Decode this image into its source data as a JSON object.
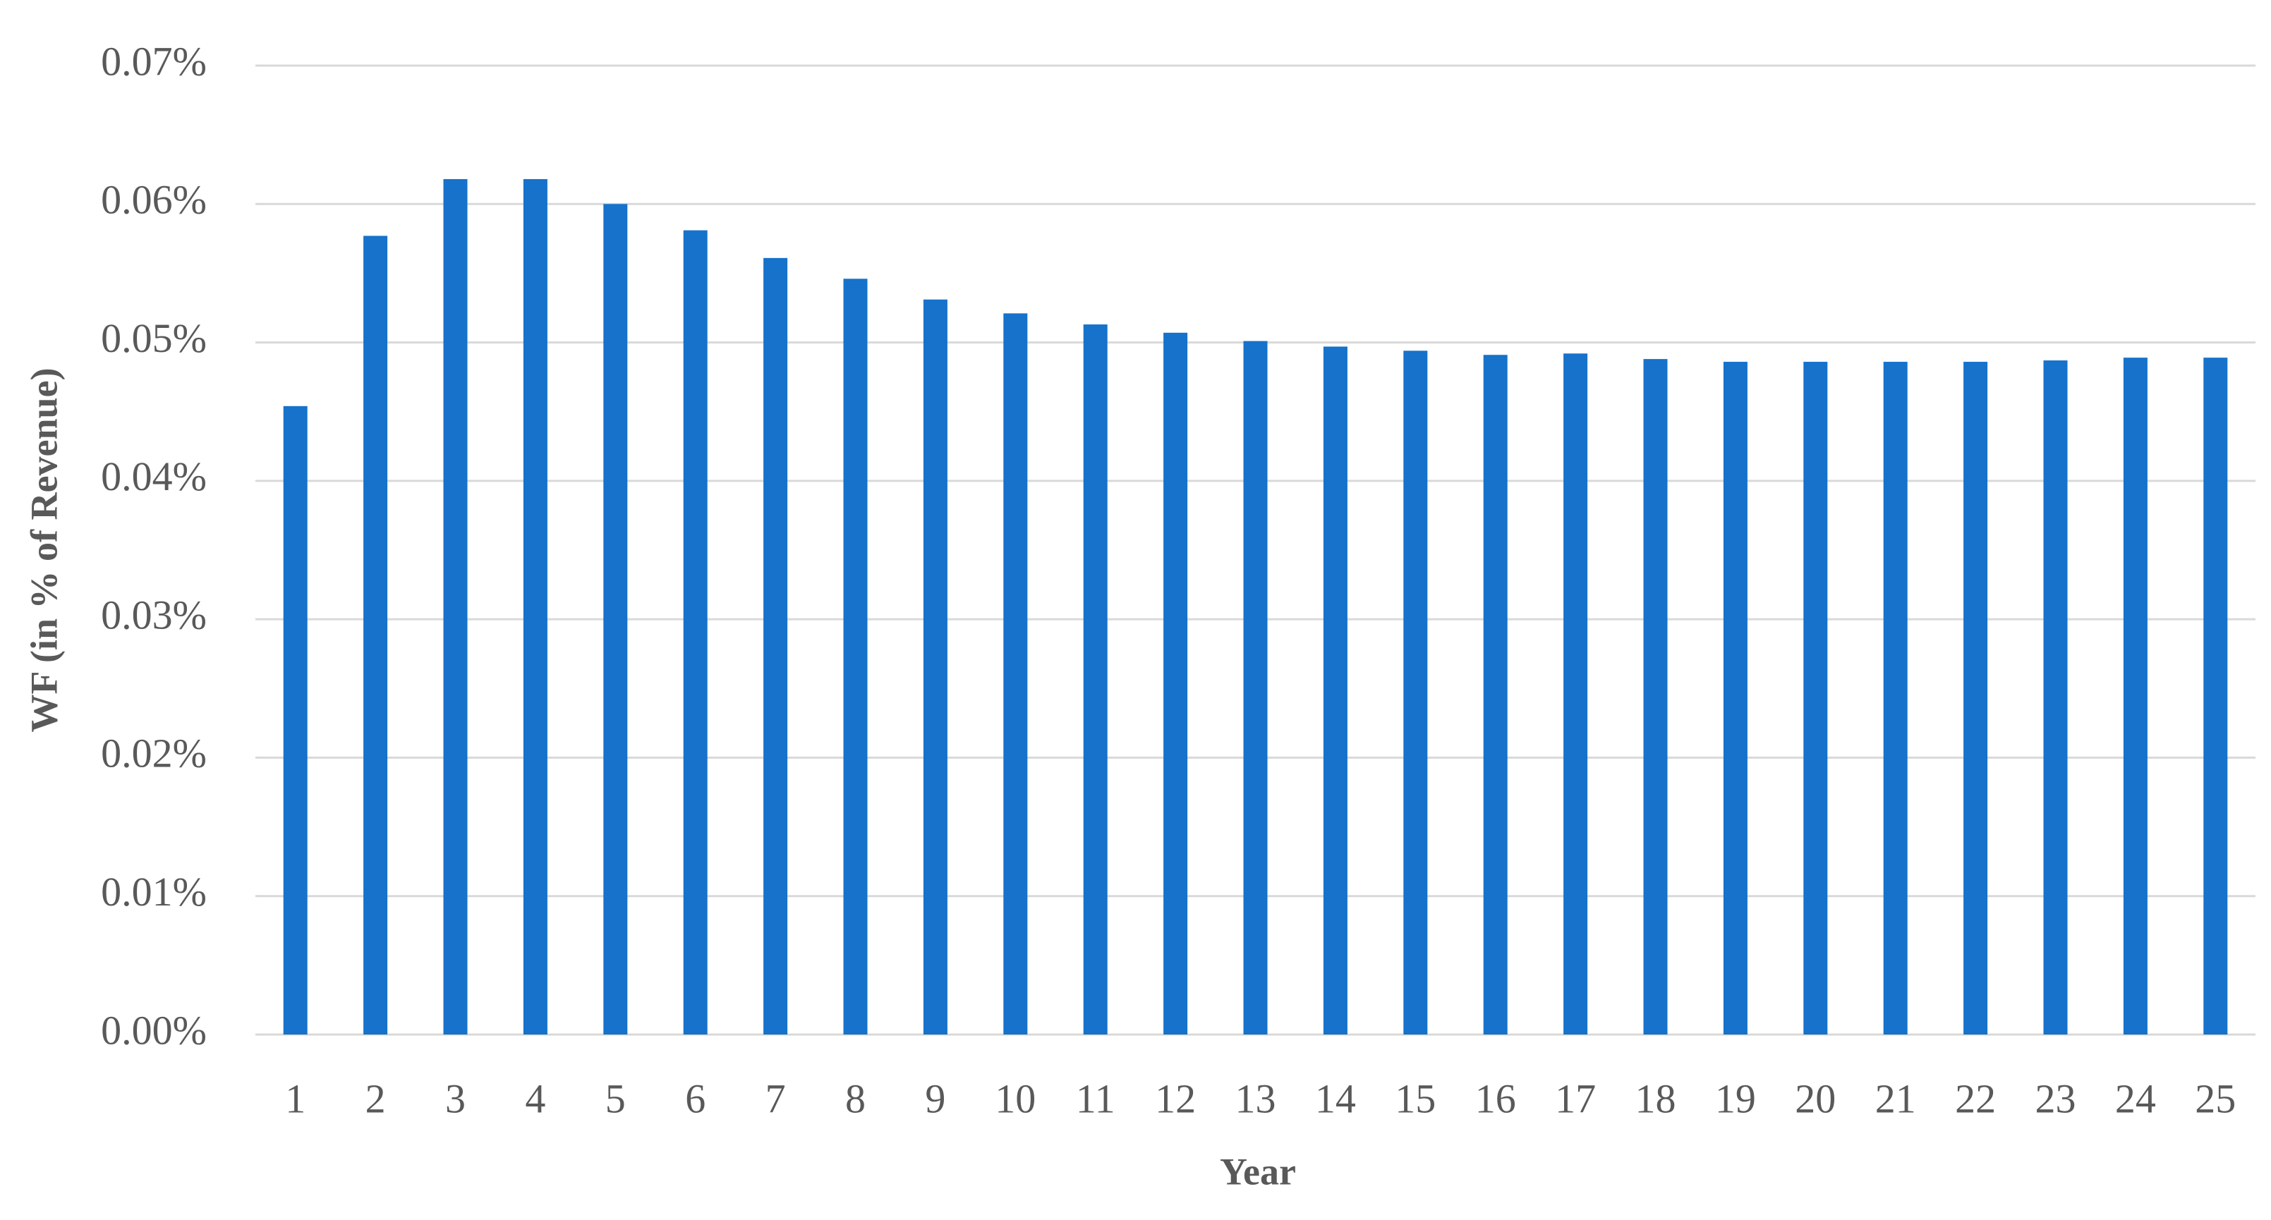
{
  "chart_data": {
    "type": "bar",
    "x_label": "Year",
    "y_label": "WF (in % of Revenue)",
    "categories": [
      "1",
      "2",
      "3",
      "4",
      "5",
      "6",
      "7",
      "8",
      "9",
      "10",
      "11",
      "12",
      "13",
      "14",
      "15",
      "16",
      "17",
      "18",
      "19",
      "20",
      "21",
      "22",
      "23",
      "24",
      "25"
    ],
    "values": [
      0.0454,
      0.0577,
      0.0618,
      0.0618,
      0.06,
      0.0581,
      0.0561,
      0.0546,
      0.0531,
      0.0521,
      0.0513,
      0.0507,
      0.0501,
      0.0497,
      0.0494,
      0.0491,
      0.0492,
      0.0488,
      0.0486,
      0.0486,
      0.0486,
      0.0486,
      0.0487,
      0.0489,
      0.0489
    ],
    "color": "#1672ca",
    "ylim": [
      0,
      0.07
    ],
    "yticks": [
      {
        "value": 0,
        "label": "0.00%"
      },
      {
        "value": 0.01,
        "label": "0.01%"
      },
      {
        "value": 0.02,
        "label": "0.02%"
      },
      {
        "value": 0.03,
        "label": "0.03%"
      },
      {
        "value": 0.04,
        "label": "0.04%"
      },
      {
        "value": 0.05,
        "label": "0.05%"
      },
      {
        "value": 0.06,
        "label": "0.06%"
      },
      {
        "value": 0.07,
        "label": "0.07%"
      }
    ],
    "grid": true
  }
}
